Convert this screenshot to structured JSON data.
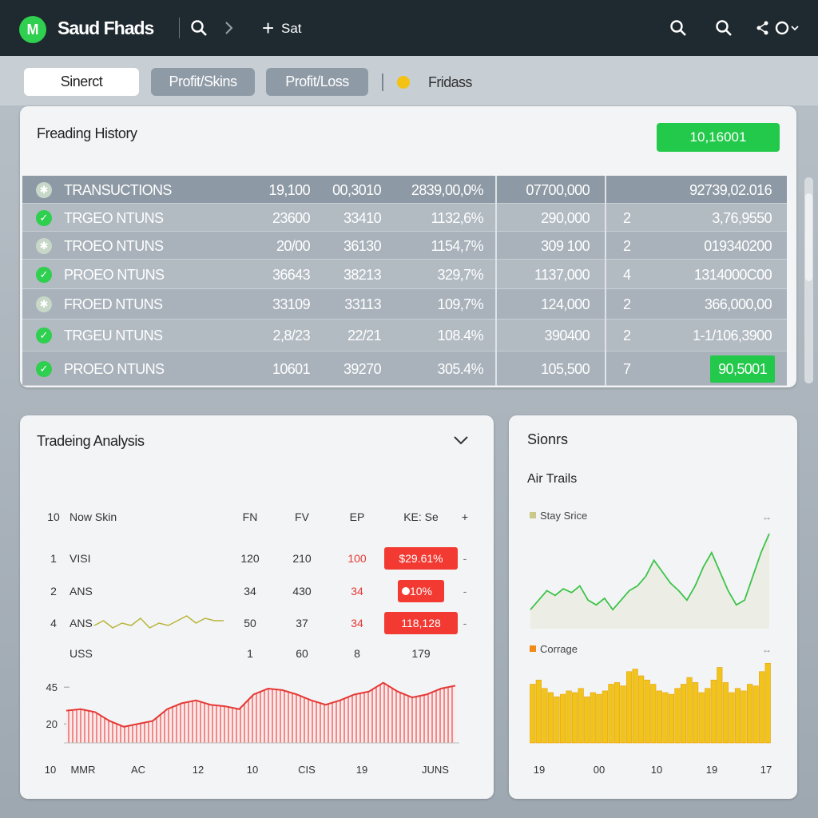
{
  "header": {
    "brand": "Saud Fhads",
    "add_label": "Sat"
  },
  "toolbar": {
    "tabs": [
      "Sinerct",
      "Profit/Skins",
      "Profit/Loss"
    ],
    "filter": "Fridass"
  },
  "history": {
    "title": "Freading History",
    "badge": "10,16001",
    "columns": [
      "TRANSUCTIONS",
      "19,100",
      "00,3010",
      "2839,00,0%",
      "07700,000",
      null,
      "92739,02.016"
    ],
    "rows": [
      [
        "TRGEO NTUNS",
        "23600",
        "33410",
        "1132,6%",
        "290,000",
        "2",
        "3,76,9550"
      ],
      [
        "TROEO NTUNS",
        "20/00",
        "36130",
        "1154,7%",
        "309 100",
        "2",
        "019340200"
      ],
      [
        "PROEO NTUNS",
        "36643",
        "38213",
        "329,7%",
        "1137,000",
        "4",
        "1314000C00"
      ],
      [
        "FROED NTUNS",
        "33109",
        "33113",
        "109,7%",
        "124,000",
        "2",
        "366,000,00"
      ],
      [
        "TRGEU NTUNS",
        "2,8/23",
        "22/21",
        "108.4%",
        "390400",
        "2",
        "1-1/106,3900"
      ],
      [
        "PROEO NTUNS",
        "10601",
        "39270",
        "305.4%",
        "105,500",
        "7",
        "90,5001"
      ]
    ]
  },
  "analysis": {
    "title": "Tradeing Analysis",
    "header": [
      "10",
      "Now Skin",
      "FN",
      "FV",
      "EP",
      "KE: Se",
      "+"
    ],
    "rows": [
      [
        "1",
        "VISI",
        "120",
        "210",
        "100",
        "$29.61%",
        "-"
      ],
      [
        "2",
        "ANS",
        "34",
        "430",
        "34",
        "10%",
        "-"
      ],
      [
        "4",
        "ANS",
        "50",
        "37",
        "34",
        "118,128",
        "-"
      ],
      [
        null,
        "USS",
        "1",
        "60",
        "8",
        "179",
        null
      ]
    ]
  },
  "side": {
    "title": "Sionrs",
    "subtitle": "Air Trails"
  },
  "chart_data": [
    {
      "type": "area",
      "color": "#e53935",
      "values": [
        29,
        30,
        28,
        22,
        18,
        20,
        22,
        30,
        34,
        36,
        33,
        32,
        30,
        40,
        44,
        43,
        40,
        36,
        33,
        36,
        40,
        42,
        48,
        42,
        38,
        40,
        44,
        46
      ],
      "x_labels": [
        "10",
        "MMR",
        "AC",
        "12",
        "10",
        "CIS",
        "19",
        "JUNS"
      ],
      "ylim": [
        7,
        50
      ],
      "yticks": [
        45,
        20
      ]
    },
    {
      "type": "line",
      "name": "Stay Srice",
      "color": "#3cc34a",
      "legend_color": "#c9c98a",
      "values": [
        20,
        30,
        40,
        35,
        42,
        38,
        45,
        30,
        25,
        32,
        20,
        30,
        40,
        45,
        55,
        72,
        60,
        48,
        40,
        30,
        45,
        65,
        80,
        60,
        40,
        25,
        30,
        55,
        80,
        100
      ],
      "ylim": [
        0,
        100
      ]
    },
    {
      "type": "bar",
      "name": "Corrage",
      "color": "#f0c419",
      "legend_color": "#f08a18",
      "values": [
        70,
        75,
        65,
        60,
        55,
        58,
        62,
        60,
        65,
        55,
        60,
        58,
        62,
        70,
        72,
        68,
        85,
        88,
        80,
        75,
        70,
        62,
        60,
        58,
        65,
        70,
        78,
        72,
        60,
        65,
        75,
        90,
        72,
        60,
        65,
        62,
        70,
        68,
        85,
        95
      ],
      "x_labels": [
        "19",
        "00",
        "10",
        "19",
        "17"
      ],
      "ylim": [
        0,
        100
      ]
    },
    {
      "type": "sparkline",
      "color": "#b8b43a",
      "values": [
        3,
        5,
        2,
        4,
        3,
        6,
        2,
        4,
        3,
        5,
        7,
        4,
        6,
        5,
        5
      ],
      "ylim": [
        0,
        8
      ]
    }
  ]
}
